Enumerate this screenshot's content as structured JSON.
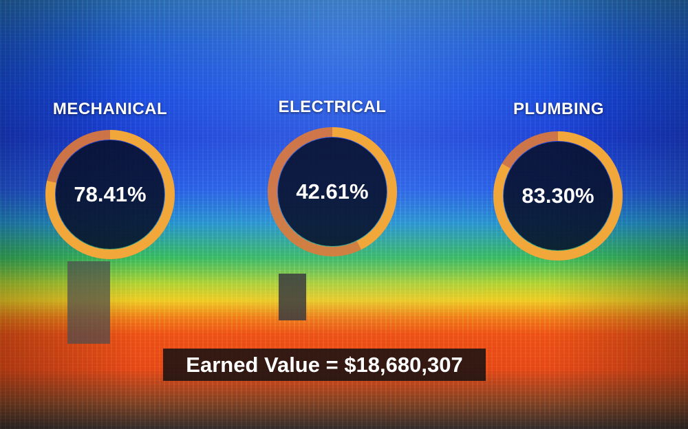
{
  "metrics": [
    {
      "label": "MECHANICAL",
      "value_text": "78.41%",
      "progress": 0.7841
    },
    {
      "label": "ELECTRICAL",
      "value_text": "42.61%",
      "progress": 0.4261
    },
    {
      "label": "PLUMBING",
      "value_text": "83.30%",
      "progress": 0.833
    }
  ],
  "earned_value": {
    "text": "Earned Value = $18,680,307"
  },
  "colors": {
    "ring_track": "#e07a3a",
    "ring_fill": "#f2a73b",
    "disc": "#08102a",
    "text": "#ffffff"
  }
}
